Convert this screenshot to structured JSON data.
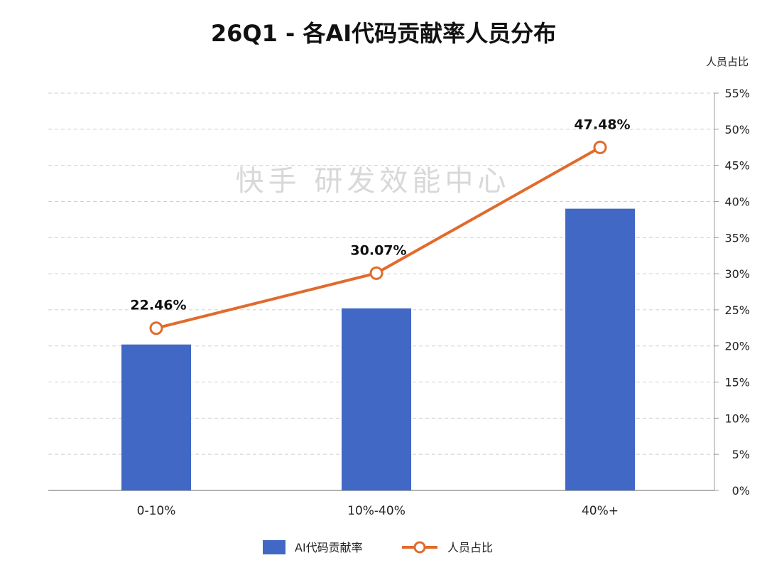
{
  "chart_data": {
    "type": "bar+line",
    "title": "26Q1 - 各AI代码贡献率人员分布",
    "categories": [
      "0-10%",
      "10%-40%",
      "40%+"
    ],
    "series": [
      {
        "name": "AI代码贡献率",
        "type": "bar",
        "values": [
          20.2,
          25.2,
          39.0
        ]
      },
      {
        "name": "人员占比",
        "type": "line",
        "values": [
          22.46,
          30.07,
          47.48
        ],
        "labels": [
          "22.46%",
          "30.07%",
          "47.48%"
        ]
      }
    ],
    "y_axis": {
      "label": "人员占比",
      "position": "right",
      "min": 0,
      "max": 55,
      "step": 5,
      "ticks": [
        "0%",
        "5%",
        "10%",
        "15%",
        "20%",
        "25%",
        "30%",
        "35%",
        "40%",
        "45%",
        "50%",
        "55%"
      ]
    },
    "grid": true,
    "legend": "bottom-center",
    "watermark": "快手 研发效能中心",
    "colors": {
      "bar": "#4068c4",
      "line": "#e06b2c",
      "grid": "#cfcfcf",
      "axis": "#999999"
    }
  }
}
